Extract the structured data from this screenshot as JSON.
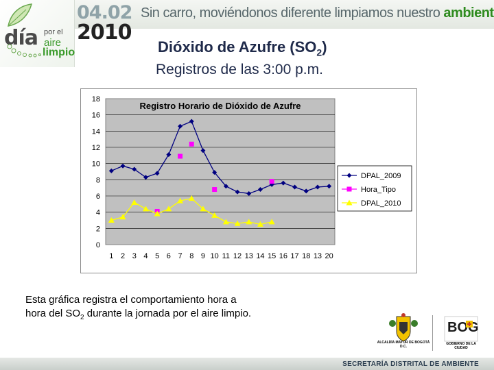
{
  "header": {
    "logo": {
      "dia": "día",
      "por_el": "por el",
      "aire": "aire",
      "limpio": "limpio"
    },
    "date_day_month": "04.02",
    "date_year": "2010",
    "slogan_main": "Sin carro, moviéndonos diferente limpiamos nuestro ",
    "slogan_highlight": "ambiente"
  },
  "slide": {
    "title_prefix": "Dióxido de Azufre (SO",
    "title_sub": "2",
    "title_suffix": ")",
    "subtitle": "Registros de las 3:00 p.m."
  },
  "caption": {
    "part1": "Esta gráfica registra el comportamiento hora a hora del SO",
    "sub": "2",
    "part2": " durante la jornada por el aire limpio."
  },
  "footer": {
    "alcaldia": "ALCALDÍA MAYOR DE BOGOTÁ D.C.",
    "bog": "BOG",
    "bog_subtitle": "GOBIERNO DE LA CIUDAD",
    "secretaria": "SECRETARÍA DISTRITAL DE AMBIENTE"
  },
  "colors": {
    "series_2009": "#000080",
    "series_hora": "#ff00ff",
    "series_2010": "#ffff00",
    "plot_bg": "#c0c0c0"
  },
  "chart_data": {
    "type": "line",
    "title": "Registro Horario de Dióxido de Azufre",
    "xlabel": "",
    "ylabel": "",
    "categories": [
      "1",
      "2",
      "3",
      "4",
      "5",
      "6",
      "7",
      "8",
      "9",
      "10",
      "11",
      "12",
      "13",
      "14",
      "15",
      "16",
      "17",
      "18",
      "13",
      "20"
    ],
    "ylim": [
      0,
      18
    ],
    "yticks": [
      0,
      2,
      4,
      6,
      8,
      10,
      12,
      14,
      16,
      18
    ],
    "grid": true,
    "legend_position": "right",
    "series": [
      {
        "name": "DPAL_2009",
        "marker": "diamond",
        "values": [
          9.1,
          9.7,
          9.3,
          8.3,
          8.8,
          11.1,
          14.6,
          15.2,
          11.6,
          8.9,
          7.2,
          6.5,
          6.3,
          6.8,
          7.4,
          7.6,
          7.1,
          6.6,
          7.1,
          7.2
        ]
      },
      {
        "name": "Hora_Tipo",
        "marker": "square",
        "line": false,
        "values": [
          null,
          null,
          null,
          null,
          4.1,
          null,
          10.9,
          12.4,
          null,
          6.8,
          null,
          null,
          null,
          null,
          7.8,
          null,
          null,
          null,
          null,
          null
        ]
      },
      {
        "name": "DPAL_2010",
        "marker": "triangle",
        "values": [
          3.0,
          3.4,
          5.2,
          4.4,
          3.8,
          4.4,
          5.4,
          5.7,
          4.4,
          3.6,
          2.8,
          2.6,
          2.8,
          2.5,
          2.8,
          null,
          null,
          null,
          null,
          null
        ]
      }
    ]
  }
}
